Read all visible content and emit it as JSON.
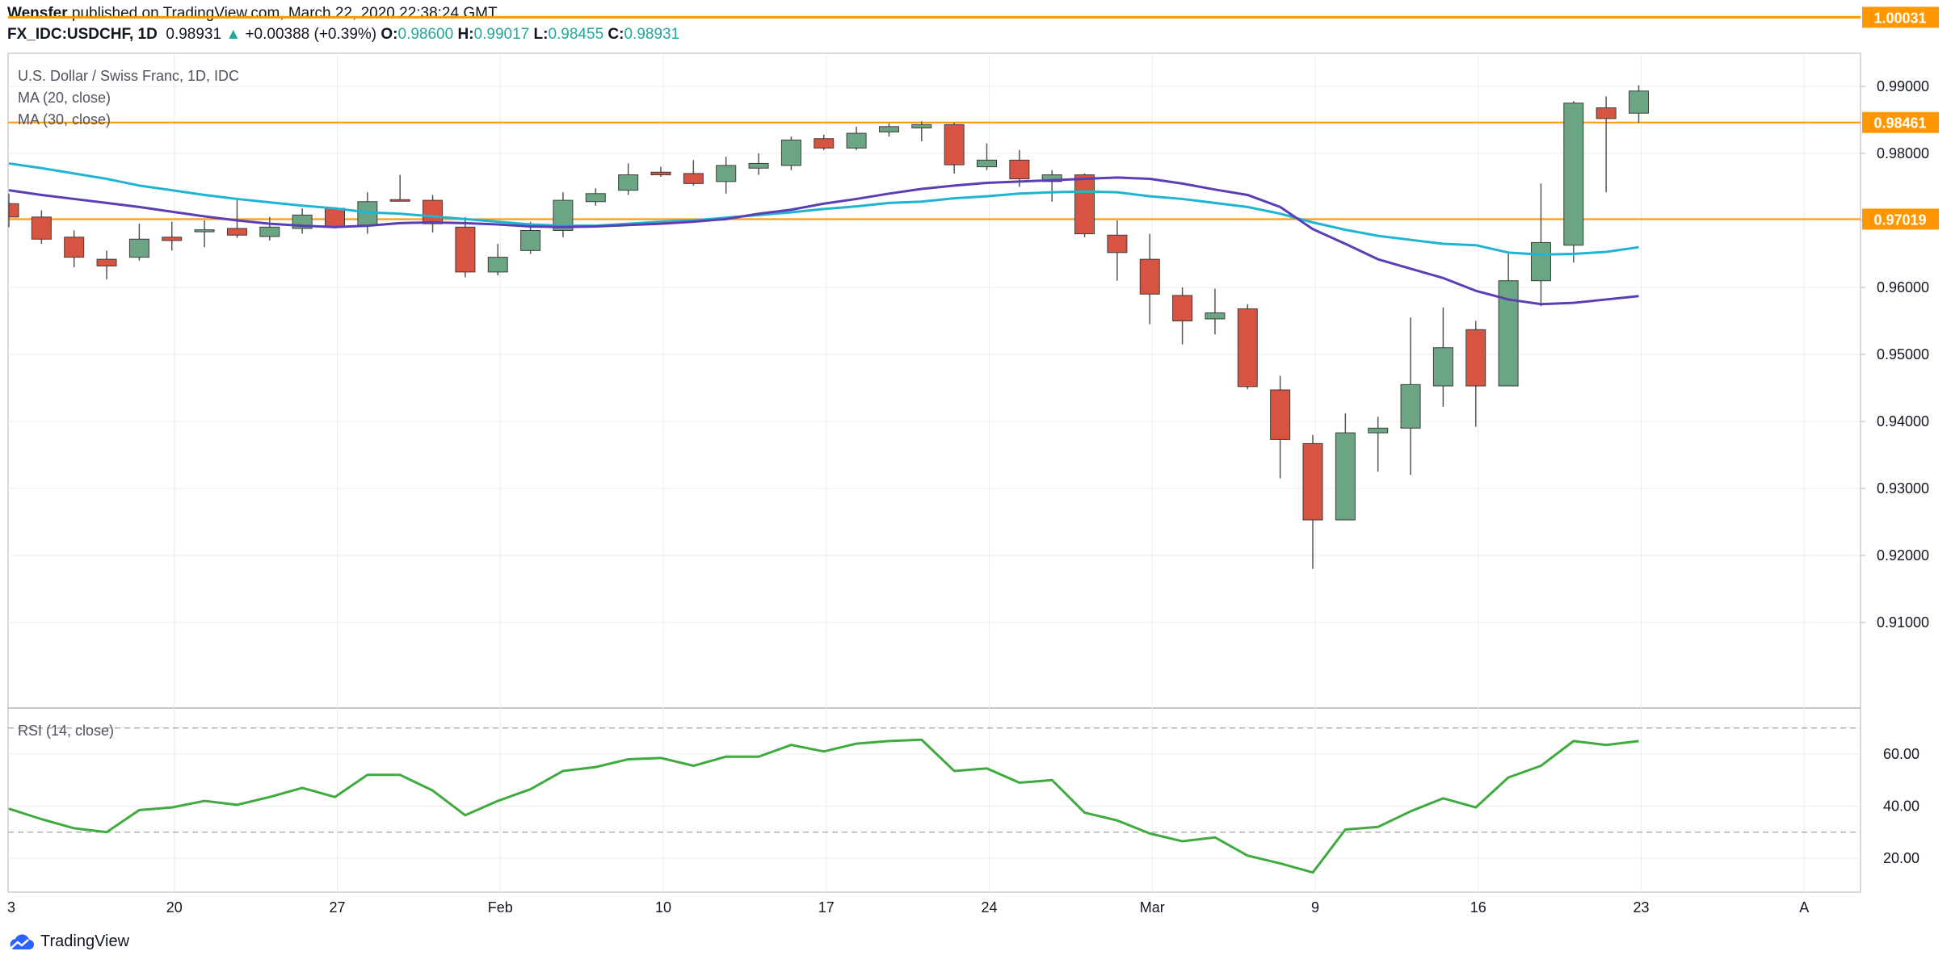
{
  "header": {
    "publisher": "Wensfer",
    "published_text": "published on TradingView.com, March 22, 2020 22:38:24 GMT",
    "symbol": "FX_IDC:USDCHF, 1D",
    "last": "0.98931",
    "change_arrow": "▲",
    "change": "+0.00388 (+0.39%)",
    "o_label": "O:",
    "o": "0.98600",
    "h_label": "H:",
    "h": "0.99017",
    "l_label": "L:",
    "l": "0.98455",
    "c_label": "C:",
    "c": "0.98931"
  },
  "legend": {
    "title": "U.S. Dollar / Swiss Franc, 1D, IDC",
    "ma20": "MA (20, close)",
    "ma30": "MA (30, close)",
    "rsi": "RSI (14, close)"
  },
  "footer": {
    "brand": "TradingView"
  },
  "colors": {
    "up": "#6ba583",
    "down": "#d75442",
    "wick": "#555555",
    "ma20": "#1fb4d2",
    "ma30": "#5b3eb5",
    "rsi": "#3fab3f",
    "level": "#ff9800",
    "grid": "#ececec"
  },
  "chart_data": [
    {
      "type": "candlestick",
      "title": "U.S. Dollar / Swiss Franc, 1D, IDC",
      "x_ticks": [
        "3",
        "20",
        "27",
        "Feb",
        "10",
        "17",
        "24",
        "Mar",
        "9",
        "16",
        "23",
        "A"
      ],
      "y_ticks": [
        "0.91000",
        "0.92000",
        "0.93000",
        "0.94000",
        "0.95000",
        "0.96000",
        "0.97000",
        "0.98000",
        "0.99000"
      ],
      "ylim": [
        0.9065,
        1.0035
      ],
      "horizontal_levels": [
        {
          "value": 1.00031,
          "label": "1.00031"
        },
        {
          "value": 0.98461,
          "label": "0.98461"
        },
        {
          "value": 0.97019,
          "label": "0.97019"
        }
      ],
      "candles": [
        {
          "o": 0.9725,
          "h": 0.974,
          "l": 0.969,
          "c": 0.9705
        },
        {
          "o": 0.9705,
          "h": 0.9715,
          "l": 0.9665,
          "c": 0.9672
        },
        {
          "o": 0.9675,
          "h": 0.9685,
          "l": 0.963,
          "c": 0.9645
        },
        {
          "o": 0.9642,
          "h": 0.9655,
          "l": 0.9612,
          "c": 0.9632
        },
        {
          "o": 0.9645,
          "h": 0.9695,
          "l": 0.964,
          "c": 0.9672
        },
        {
          "o": 0.9675,
          "h": 0.9698,
          "l": 0.9655,
          "c": 0.967
        },
        {
          "o": 0.9683,
          "h": 0.97,
          "l": 0.966,
          "c": 0.9686
        },
        {
          "o": 0.9688,
          "h": 0.973,
          "l": 0.9674,
          "c": 0.9678
        },
        {
          "o": 0.9676,
          "h": 0.9705,
          "l": 0.967,
          "c": 0.969
        },
        {
          "o": 0.9688,
          "h": 0.9718,
          "l": 0.968,
          "c": 0.9708
        },
        {
          "o": 0.9718,
          "h": 0.972,
          "l": 0.9688,
          "c": 0.969
        },
        {
          "o": 0.9693,
          "h": 0.9742,
          "l": 0.968,
          "c": 0.9728
        },
        {
          "o": 0.9731,
          "h": 0.9768,
          "l": 0.9728,
          "c": 0.973
        },
        {
          "o": 0.973,
          "h": 0.9738,
          "l": 0.9682,
          "c": 0.9695
        },
        {
          "o": 0.969,
          "h": 0.9705,
          "l": 0.9615,
          "c": 0.9623
        },
        {
          "o": 0.9623,
          "h": 0.9665,
          "l": 0.9618,
          "c": 0.9645
        },
        {
          "o": 0.9655,
          "h": 0.9698,
          "l": 0.965,
          "c": 0.9685
        },
        {
          "o": 0.9685,
          "h": 0.9742,
          "l": 0.9675,
          "c": 0.973
        },
        {
          "o": 0.9728,
          "h": 0.9748,
          "l": 0.9722,
          "c": 0.974
        },
        {
          "o": 0.9745,
          "h": 0.9785,
          "l": 0.9738,
          "c": 0.9768
        },
        {
          "o": 0.9772,
          "h": 0.978,
          "l": 0.9765,
          "c": 0.9768
        },
        {
          "o": 0.977,
          "h": 0.979,
          "l": 0.9752,
          "c": 0.9755
        },
        {
          "o": 0.9758,
          "h": 0.9795,
          "l": 0.974,
          "c": 0.9782
        },
        {
          "o": 0.9778,
          "h": 0.98,
          "l": 0.9768,
          "c": 0.9785
        },
        {
          "o": 0.9782,
          "h": 0.9825,
          "l": 0.9775,
          "c": 0.982
        },
        {
          "o": 0.9822,
          "h": 0.9828,
          "l": 0.9805,
          "c": 0.9808
        },
        {
          "o": 0.9808,
          "h": 0.984,
          "l": 0.9805,
          "c": 0.983
        },
        {
          "o": 0.9832,
          "h": 0.9845,
          "l": 0.9825,
          "c": 0.984
        },
        {
          "o": 0.9838,
          "h": 0.9848,
          "l": 0.9818,
          "c": 0.9843
        },
        {
          "o": 0.9843,
          "h": 0.9846,
          "l": 0.977,
          "c": 0.9783
        },
        {
          "o": 0.978,
          "h": 0.9815,
          "l": 0.9775,
          "c": 0.979
        },
        {
          "o": 0.979,
          "h": 0.9805,
          "l": 0.975,
          "c": 0.9762
        },
        {
          "o": 0.9758,
          "h": 0.9775,
          "l": 0.9728,
          "c": 0.9768
        },
        {
          "o": 0.9768,
          "h": 0.977,
          "l": 0.9675,
          "c": 0.968
        },
        {
          "o": 0.9678,
          "h": 0.97,
          "l": 0.961,
          "c": 0.9652
        },
        {
          "o": 0.9642,
          "h": 0.968,
          "l": 0.9545,
          "c": 0.959
        },
        {
          "o": 0.9588,
          "h": 0.96,
          "l": 0.9515,
          "c": 0.955
        },
        {
          "o": 0.9553,
          "h": 0.9598,
          "l": 0.953,
          "c": 0.9562
        },
        {
          "o": 0.9568,
          "h": 0.9575,
          "l": 0.9448,
          "c": 0.9452
        },
        {
          "o": 0.9447,
          "h": 0.9468,
          "l": 0.9315,
          "c": 0.9373
        },
        {
          "o": 0.9367,
          "h": 0.938,
          "l": 0.918,
          "c": 0.9253
        },
        {
          "o": 0.9253,
          "h": 0.9412,
          "l": 0.9253,
          "c": 0.9383
        },
        {
          "o": 0.9383,
          "h": 0.9407,
          "l": 0.9325,
          "c": 0.939
        },
        {
          "o": 0.939,
          "h": 0.9555,
          "l": 0.932,
          "c": 0.9455
        },
        {
          "o": 0.9453,
          "h": 0.957,
          "l": 0.9422,
          "c": 0.951
        },
        {
          "o": 0.9537,
          "h": 0.955,
          "l": 0.9392,
          "c": 0.9453
        },
        {
          "o": 0.9453,
          "h": 0.965,
          "l": 0.9453,
          "c": 0.961
        },
        {
          "o": 0.961,
          "h": 0.9755,
          "l": 0.9572,
          "c": 0.9667
        },
        {
          "o": 0.9663,
          "h": 0.9878,
          "l": 0.9637,
          "c": 0.9875
        },
        {
          "o": 0.9868,
          "h": 0.9885,
          "l": 0.9742,
          "c": 0.9852
        },
        {
          "o": 0.986,
          "h": 0.99017,
          "l": 0.98455,
          "c": 0.98931
        }
      ],
      "ma20": [
        0.9785,
        0.9778,
        0.977,
        0.9762,
        0.9752,
        0.9745,
        0.9738,
        0.9732,
        0.9727,
        0.9722,
        0.9718,
        0.9712,
        0.971,
        0.9706,
        0.9702,
        0.9698,
        0.9694,
        0.9692,
        0.9692,
        0.9695,
        0.9698,
        0.97,
        0.9704,
        0.9708,
        0.9712,
        0.9717,
        0.9721,
        0.9726,
        0.9728,
        0.9733,
        0.9736,
        0.974,
        0.9742,
        0.9743,
        0.9742,
        0.9736,
        0.9732,
        0.9726,
        0.972,
        0.971,
        0.9697,
        0.9686,
        0.9677,
        0.9671,
        0.9665,
        0.9663,
        0.9652,
        0.9649,
        0.965,
        0.9653,
        0.966
      ],
      "ma30": [
        0.9745,
        0.9738,
        0.9732,
        0.9726,
        0.972,
        0.9713,
        0.9706,
        0.97,
        0.9695,
        0.9692,
        0.969,
        0.9692,
        0.9696,
        0.9697,
        0.9696,
        0.9694,
        0.9691,
        0.969,
        0.9691,
        0.9693,
        0.9695,
        0.9698,
        0.9702,
        0.971,
        0.9716,
        0.9725,
        0.9732,
        0.974,
        0.9747,
        0.9752,
        0.9756,
        0.9758,
        0.976,
        0.9762,
        0.9764,
        0.9762,
        0.9755,
        0.9746,
        0.9738,
        0.972,
        0.9687,
        0.9665,
        0.9642,
        0.9628,
        0.9614,
        0.9595,
        0.9582,
        0.9575,
        0.9577,
        0.9582,
        0.9587
      ]
    },
    {
      "type": "line",
      "title": "RSI (14, close)",
      "y_ticks": [
        "20.00",
        "40.00",
        "60.00"
      ],
      "ylim": [
        7,
        77
      ],
      "reference_lines": [
        70,
        30
      ],
      "values": [
        39,
        35,
        31.5,
        30,
        38.5,
        39.5,
        42,
        40.5,
        43.5,
        47,
        43.5,
        52,
        52,
        46,
        36.5,
        42,
        46.5,
        53.5,
        55,
        58,
        58.5,
        55.5,
        59,
        59,
        63.5,
        61,
        64,
        65,
        65.5,
        53.5,
        54.5,
        49,
        50,
        37.5,
        34.5,
        29.5,
        26.5,
        28,
        21,
        18,
        14.5,
        31,
        32,
        38,
        43,
        39.5,
        51,
        55.5,
        65,
        63.5,
        65
      ]
    }
  ]
}
